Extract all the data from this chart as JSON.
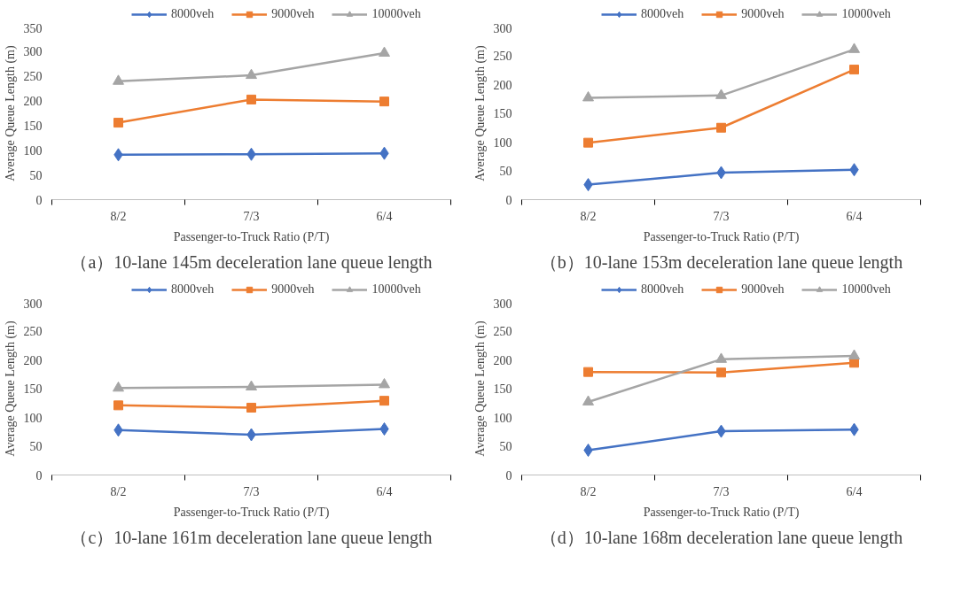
{
  "chart_data": [
    {
      "type": "line",
      "title": "（a）10-lane 145m deceleration lane queue length",
      "xlabel": "Passenger-to-Truck Ratio (P/T)",
      "ylabel": "Average Queue Length (m)",
      "categories": [
        "8/2",
        "7/3",
        "6/4"
      ],
      "ylim": [
        0,
        350
      ],
      "yticks": [
        0,
        50,
        100,
        150,
        200,
        250,
        300,
        350
      ],
      "grid": false,
      "legend": "top",
      "series": [
        {
          "name": "8000veh",
          "color": "#4472c4",
          "marker": "diamond",
          "values": [
            91,
            92,
            94
          ]
        },
        {
          "name": "9000veh",
          "color": "#ed7d31",
          "marker": "square",
          "values": [
            156,
            203,
            199
          ]
        },
        {
          "name": "10000veh",
          "color": "#a5a5a5",
          "marker": "triangle",
          "values": [
            240,
            252,
            297
          ]
        }
      ]
    },
    {
      "type": "line",
      "title": "（b）10-lane 153m deceleration lane queue length",
      "xlabel": "Passenger-to-Truck Ratio (P/T)",
      "ylabel": "Average Queue Length (m)",
      "categories": [
        "8/2",
        "7/3",
        "6/4"
      ],
      "ylim": [
        0,
        300
      ],
      "yticks": [
        0,
        50,
        100,
        150,
        200,
        250,
        300
      ],
      "grid": false,
      "legend": "top",
      "series": [
        {
          "name": "8000veh",
          "color": "#4472c4",
          "marker": "diamond",
          "values": [
            26,
            47,
            52
          ]
        },
        {
          "name": "9000veh",
          "color": "#ed7d31",
          "marker": "square",
          "values": [
            99,
            125,
            226
          ]
        },
        {
          "name": "10000veh",
          "color": "#a5a5a5",
          "marker": "triangle",
          "values": [
            177,
            181,
            261
          ]
        }
      ]
    },
    {
      "type": "line",
      "title": "（c）10-lane 161m deceleration lane queue length",
      "xlabel": "Passenger-to-Truck Ratio (P/T)",
      "ylabel": "Average Queue Length (m)",
      "categories": [
        "8/2",
        "7/3",
        "6/4"
      ],
      "ylim": [
        0,
        300
      ],
      "yticks": [
        0,
        50,
        100,
        150,
        200,
        250,
        300
      ],
      "grid": false,
      "legend": "top",
      "series": [
        {
          "name": "8000veh",
          "color": "#4472c4",
          "marker": "diamond",
          "values": [
            78,
            70,
            80
          ]
        },
        {
          "name": "9000veh",
          "color": "#ed7d31",
          "marker": "square",
          "values": [
            121,
            117,
            129
          ]
        },
        {
          "name": "10000veh",
          "color": "#a5a5a5",
          "marker": "triangle",
          "values": [
            151,
            153,
            157
          ]
        }
      ]
    },
    {
      "type": "line",
      "title": "（d）10-lane 168m deceleration lane queue length",
      "xlabel": "Passenger-to-Truck Ratio (P/T)",
      "ylabel": "Average Queue Length (m)",
      "categories": [
        "8/2",
        "7/3",
        "6/4"
      ],
      "ylim": [
        0,
        300
      ],
      "yticks": [
        0,
        50,
        100,
        150,
        200,
        250,
        300
      ],
      "grid": false,
      "legend": "top",
      "series": [
        {
          "name": "8000veh",
          "color": "#4472c4",
          "marker": "diamond",
          "values": [
            43,
            76,
            79
          ]
        },
        {
          "name": "9000veh",
          "color": "#ed7d31",
          "marker": "square",
          "values": [
            179,
            178,
            195
          ]
        },
        {
          "name": "10000veh",
          "color": "#a5a5a5",
          "marker": "triangle",
          "values": [
            127,
            201,
            207
          ]
        }
      ]
    }
  ]
}
